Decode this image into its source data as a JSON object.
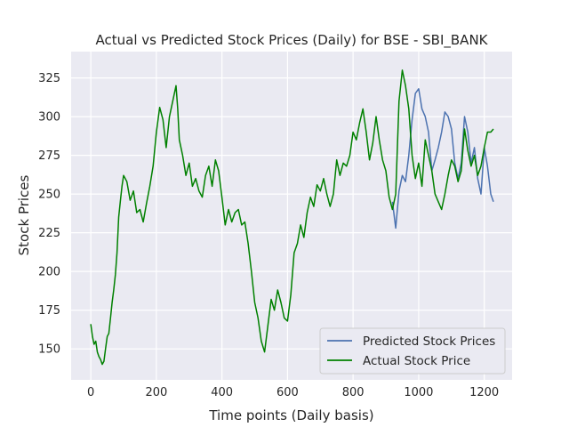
{
  "chart_data": {
    "type": "line",
    "title": "Actual vs Predicted Stock Prices (Daily) for BSE - SBI_BANK",
    "xlabel": "Time points (Daily basis)",
    "ylabel": "Stock Prices",
    "xlim": [
      -60,
      1285
    ],
    "ylim": [
      130,
      342
    ],
    "xticks": [
      0,
      200,
      400,
      600,
      800,
      1000,
      1200
    ],
    "yticks": [
      150,
      175,
      200,
      225,
      250,
      275,
      300,
      325
    ],
    "grid": true,
    "legend_position": "lower-right",
    "series": [
      {
        "name": "Predicted Stock Prices",
        "color": "#4c72b0",
        "x": [
          920,
          930,
          940,
          950,
          960,
          970,
          980,
          990,
          1000,
          1010,
          1020,
          1030,
          1040,
          1050,
          1060,
          1070,
          1080,
          1090,
          1100,
          1110,
          1120,
          1130,
          1140,
          1150,
          1160,
          1170,
          1180,
          1190,
          1200,
          1210,
          1220,
          1228
        ],
        "values": [
          245,
          228,
          252,
          262,
          258,
          275,
          298,
          315,
          318,
          305,
          300,
          290,
          265,
          272,
          280,
          290,
          303,
          300,
          292,
          270,
          260,
          270,
          300,
          290,
          270,
          280,
          260,
          250,
          280,
          268,
          250,
          245
        ]
      },
      {
        "name": "Actual Stock Price",
        "color": "#008000",
        "x": [
          0,
          5,
          10,
          15,
          20,
          25,
          30,
          35,
          40,
          45,
          50,
          55,
          60,
          65,
          70,
          75,
          80,
          85,
          90,
          95,
          100,
          110,
          120,
          130,
          140,
          150,
          160,
          170,
          180,
          190,
          200,
          210,
          220,
          230,
          240,
          250,
          260,
          265,
          270,
          280,
          290,
          300,
          310,
          320,
          330,
          340,
          350,
          360,
          370,
          380,
          390,
          400,
          410,
          420,
          430,
          440,
          450,
          460,
          470,
          480,
          490,
          500,
          510,
          520,
          530,
          540,
          550,
          560,
          570,
          580,
          590,
          600,
          610,
          620,
          630,
          640,
          650,
          660,
          670,
          680,
          690,
          700,
          710,
          720,
          730,
          740,
          750,
          760,
          770,
          780,
          790,
          800,
          810,
          820,
          830,
          840,
          850,
          860,
          870,
          880,
          890,
          900,
          910,
          920,
          930,
          940,
          950,
          960,
          970,
          980,
          990,
          1000,
          1010,
          1020,
          1030,
          1040,
          1050,
          1060,
          1070,
          1080,
          1090,
          1100,
          1110,
          1120,
          1130,
          1140,
          1150,
          1160,
          1170,
          1180,
          1190,
          1200,
          1210,
          1220,
          1228
        ],
        "values": [
          166,
          158,
          153,
          155,
          148,
          145,
          143,
          140,
          142,
          150,
          158,
          160,
          170,
          180,
          188,
          198,
          212,
          235,
          245,
          255,
          262,
          258,
          246,
          252,
          238,
          240,
          232,
          244,
          255,
          268,
          290,
          306,
          298,
          280,
          300,
          310,
          320,
          305,
          285,
          275,
          262,
          270,
          255,
          260,
          252,
          248,
          262,
          268,
          255,
          272,
          265,
          248,
          230,
          240,
          232,
          238,
          240,
          230,
          232,
          218,
          200,
          180,
          170,
          155,
          148,
          165,
          182,
          175,
          188,
          180,
          170,
          168,
          185,
          212,
          218,
          230,
          222,
          238,
          248,
          242,
          256,
          252,
          260,
          250,
          242,
          250,
          272,
          262,
          270,
          268,
          275,
          290,
          285,
          296,
          305,
          290,
          272,
          283,
          300,
          285,
          272,
          265,
          248,
          240,
          250,
          310,
          330,
          320,
          305,
          275,
          260,
          270,
          255,
          285,
          275,
          265,
          250,
          245,
          240,
          250,
          262,
          272,
          268,
          258,
          265,
          292,
          278,
          268,
          275,
          262,
          268,
          280,
          290,
          290,
          292
        ]
      }
    ]
  }
}
